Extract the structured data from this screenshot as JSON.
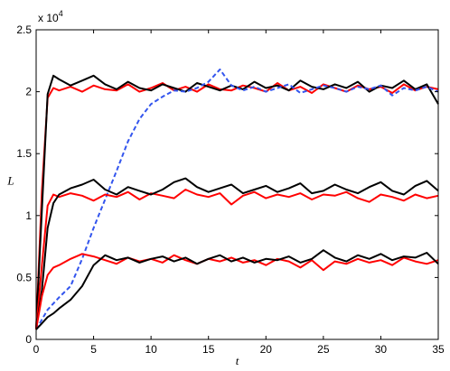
{
  "chart_data": {
    "type": "line",
    "title": "",
    "xlabel": "t",
    "ylabel": "L",
    "xlim": [
      0,
      35
    ],
    "ylim": [
      0,
      25000
    ],
    "x_ticks": [
      0,
      5,
      10,
      15,
      20,
      25,
      30,
      35
    ],
    "y_ticks": [
      0,
      5000,
      10000,
      15000,
      20000,
      25000
    ],
    "x_tick_labels": [
      "0",
      "5",
      "10",
      "15",
      "20",
      "25",
      "30",
      "35"
    ],
    "y_tick_labels": [
      "0",
      "0.5",
      "1",
      "1.5",
      "2",
      "2.5"
    ],
    "y_exponent_base": "x 10",
    "y_exponent_power": "4",
    "grid": false,
    "legend": "none",
    "series": [
      {
        "group": "high",
        "color": "#ff0000",
        "style": "solid",
        "x": [
          0,
          0.5,
          1.0,
          1.5,
          2,
          3,
          4,
          5,
          6,
          7,
          8,
          9,
          10,
          11,
          12,
          13,
          14,
          15,
          16,
          17,
          18,
          19,
          20,
          21,
          22,
          23,
          24,
          25,
          26,
          27,
          28,
          29,
          30,
          31,
          32,
          33,
          34,
          35
        ],
        "y": [
          800,
          12000,
          19500,
          20300,
          20100,
          20400,
          20000,
          20500,
          20200,
          20100,
          20600,
          20000,
          20300,
          20700,
          20100,
          20400,
          20000,
          20600,
          20200,
          20100,
          20500,
          20300,
          20000,
          20700,
          20100,
          20400,
          19900,
          20600,
          20300,
          20000,
          20500,
          20200,
          20400,
          19900,
          20600,
          20100,
          20400,
          20200
        ]
      },
      {
        "group": "high",
        "color": "#000000",
        "style": "solid",
        "x": [
          0,
          0.5,
          1.0,
          1.5,
          2,
          3,
          4,
          5,
          6,
          7,
          8,
          9,
          10,
          11,
          12,
          13,
          14,
          15,
          16,
          17,
          18,
          19,
          20,
          21,
          22,
          23,
          24,
          25,
          26,
          27,
          28,
          29,
          30,
          31,
          32,
          33,
          34,
          35
        ],
        "y": [
          800,
          10500,
          19800,
          21300,
          21000,
          20500,
          20900,
          21300,
          20600,
          20200,
          20800,
          20300,
          20100,
          20600,
          20300,
          20000,
          20700,
          20400,
          20100,
          20500,
          20200,
          20800,
          20300,
          20500,
          20100,
          20900,
          20400,
          20200,
          20600,
          20300,
          20800,
          20000,
          20500,
          20300,
          20900,
          20200,
          20600,
          19000
        ]
      },
      {
        "group": "high",
        "color": "#3355ee",
        "style": "dashed",
        "x": [
          0,
          0.5,
          1,
          2,
          3,
          4,
          5,
          6,
          7,
          8,
          9,
          10,
          11,
          12,
          13,
          14,
          15,
          16,
          17,
          18,
          19,
          20,
          21,
          22,
          23,
          24,
          25,
          26,
          27,
          28,
          29,
          30,
          31,
          32,
          33,
          34,
          35
        ],
        "y": [
          800,
          1600,
          2400,
          3400,
          4300,
          6500,
          9000,
          11300,
          13600,
          16000,
          17800,
          19000,
          19600,
          20100,
          20000,
          20300,
          20800,
          21800,
          20500,
          20100,
          20400,
          20000,
          20300,
          20600,
          19900,
          20200,
          20500,
          20300,
          20000,
          20400,
          20200,
          20500,
          19700,
          20300,
          20100,
          20400,
          20000
        ]
      },
      {
        "group": "mid",
        "color": "#ff0000",
        "style": "solid",
        "x": [
          0,
          0.5,
          1.0,
          1.5,
          2,
          3,
          4,
          5,
          6,
          7,
          8,
          9,
          10,
          11,
          12,
          13,
          14,
          15,
          16,
          17,
          18,
          19,
          20,
          21,
          22,
          23,
          24,
          25,
          26,
          27,
          28,
          29,
          30,
          31,
          32,
          33,
          34,
          35
        ],
        "y": [
          800,
          6000,
          10800,
          11700,
          11500,
          11800,
          11600,
          11200,
          11700,
          11500,
          11900,
          11300,
          11800,
          11600,
          11400,
          12100,
          11700,
          11500,
          11800,
          10900,
          11600,
          11900,
          11400,
          11700,
          11500,
          11800,
          11300,
          11700,
          11600,
          11900,
          11400,
          11100,
          11700,
          11500,
          11200,
          11700,
          11400,
          11600
        ]
      },
      {
        "group": "mid",
        "color": "#000000",
        "style": "solid",
        "x": [
          0,
          0.5,
          1.0,
          1.5,
          2,
          3,
          4,
          5,
          6,
          7,
          8,
          9,
          10,
          11,
          12,
          13,
          14,
          15,
          16,
          17,
          18,
          19,
          20,
          21,
          22,
          23,
          24,
          25,
          26,
          27,
          28,
          29,
          30,
          31,
          32,
          33,
          34,
          35
        ],
        "y": [
          800,
          4000,
          9000,
          11000,
          11700,
          12200,
          12500,
          12900,
          12100,
          11700,
          12300,
          12000,
          11700,
          12100,
          12700,
          13000,
          12300,
          11900,
          12200,
          12500,
          11800,
          12100,
          12400,
          11900,
          12200,
          12600,
          11800,
          12000,
          12500,
          12100,
          11800,
          12300,
          12700,
          12000,
          11700,
          12400,
          12800,
          12000
        ]
      },
      {
        "group": "low",
        "color": "#ff0000",
        "style": "solid",
        "x": [
          0,
          0.5,
          1.0,
          1.5,
          2,
          3,
          4,
          5,
          6,
          7,
          8,
          9,
          10,
          11,
          12,
          13,
          14,
          15,
          16,
          17,
          18,
          19,
          20,
          21,
          22,
          23,
          24,
          25,
          26,
          27,
          28,
          29,
          30,
          31,
          32,
          33,
          34,
          35
        ],
        "y": [
          800,
          3500,
          5200,
          5800,
          6000,
          6500,
          6900,
          6700,
          6400,
          6100,
          6600,
          6300,
          6500,
          6200,
          6800,
          6400,
          6100,
          6500,
          6300,
          6600,
          6200,
          6400,
          6000,
          6500,
          6300,
          5800,
          6400,
          5600,
          6300,
          6100,
          6500,
          6200,
          6400,
          6000,
          6600,
          6300,
          6100,
          6400
        ]
      },
      {
        "group": "low",
        "color": "#000000",
        "style": "solid",
        "x": [
          0,
          0.5,
          1,
          1.5,
          2,
          3,
          4,
          5,
          6,
          7,
          8,
          9,
          10,
          11,
          12,
          13,
          14,
          15,
          16,
          17,
          18,
          19,
          20,
          21,
          22,
          23,
          24,
          25,
          26,
          27,
          28,
          29,
          30,
          31,
          32,
          33,
          34,
          35
        ],
        "y": [
          800,
          1300,
          1800,
          2100,
          2500,
          3200,
          4300,
          6000,
          6800,
          6400,
          6600,
          6200,
          6500,
          6700,
          6300,
          6600,
          6100,
          6500,
          6800,
          6300,
          6600,
          6200,
          6500,
          6400,
          6700,
          6200,
          6500,
          7200,
          6600,
          6300,
          6800,
          6500,
          6900,
          6400,
          6700,
          6600,
          7000,
          6100
        ]
      }
    ]
  }
}
